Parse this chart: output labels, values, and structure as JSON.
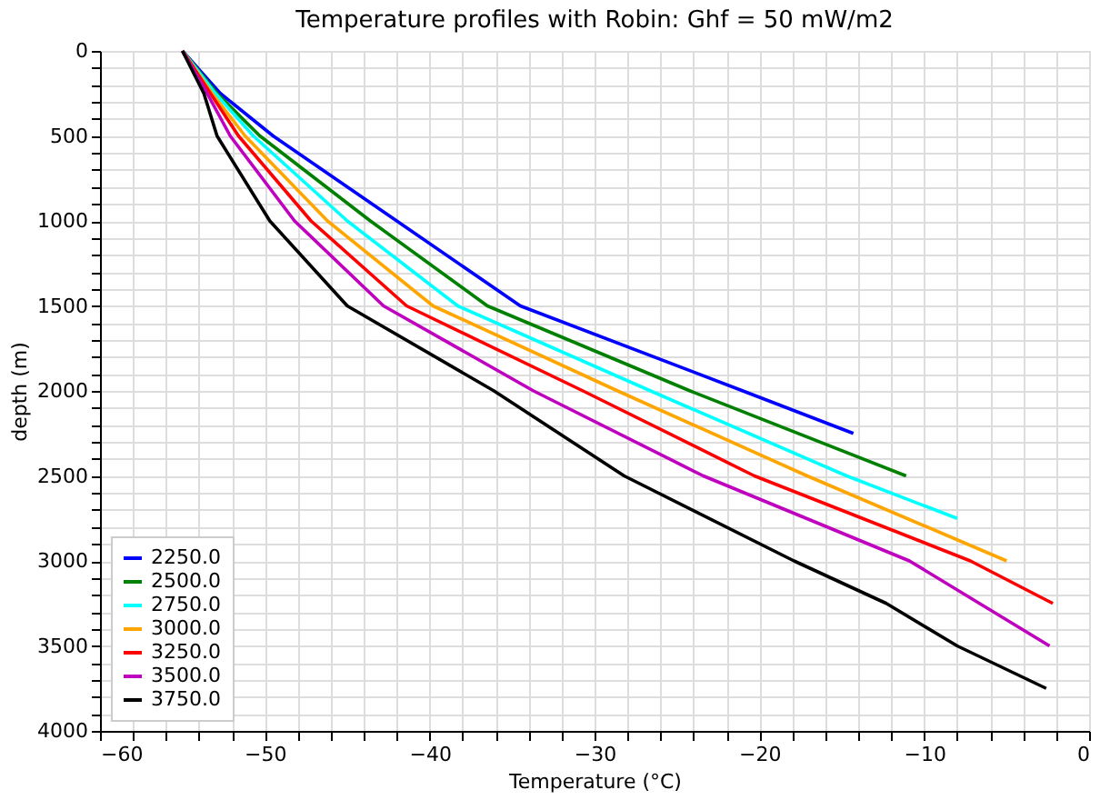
{
  "chart_data": {
    "type": "line",
    "title": "Temperature profiles with Robin: Ghf = 50 mW/m2",
    "xlabel": "Temperature (°C)",
    "ylabel": "depth (m)",
    "xlim": [
      -60,
      0
    ],
    "ylim": [
      4000,
      0
    ],
    "xticks": [
      -60,
      {
        "value": -58,
        "label": null
      },
      {
        "value": -56,
        "label": null
      },
      {
        "value": -54,
        "label": null
      },
      {
        "value": -52,
        "label": null
      },
      -50,
      {
        "value": -48,
        "label": null
      },
      {
        "value": -46,
        "label": null
      },
      {
        "value": -44,
        "label": null
      },
      {
        "value": -42,
        "label": null
      },
      -40,
      {
        "value": -38,
        "label": null
      },
      {
        "value": -36,
        "label": null
      },
      {
        "value": -34,
        "label": null
      },
      {
        "value": -32,
        "label": null
      },
      -30,
      {
        "value": -28,
        "label": null
      },
      {
        "value": -26,
        "label": null
      },
      {
        "value": -24,
        "label": null
      },
      {
        "value": -22,
        "label": null
      },
      -20,
      {
        "value": -18,
        "label": null
      },
      {
        "value": -16,
        "label": null
      },
      {
        "value": -14,
        "label": null
      },
      {
        "value": -12,
        "label": null
      },
      -10,
      {
        "value": -8,
        "label": null
      },
      {
        "value": -6,
        "label": null
      },
      {
        "value": -4,
        "label": null
      },
      {
        "value": -2,
        "label": null
      },
      0
    ],
    "yticks": [
      0,
      {
        "value": 100,
        "label": null
      },
      {
        "value": 200,
        "label": null
      },
      {
        "value": 300,
        "label": null
      },
      {
        "value": 400,
        "label": null
      },
      500,
      {
        "value": 600,
        "label": null
      },
      {
        "value": 700,
        "label": null
      },
      {
        "value": 800,
        "label": null
      },
      {
        "value": 900,
        "label": null
      },
      1000,
      {
        "value": 1100,
        "label": null
      },
      {
        "value": 1200,
        "label": null
      },
      {
        "value": 1300,
        "label": null
      },
      {
        "value": 1400,
        "label": null
      },
      1500,
      {
        "value": 1600,
        "label": null
      },
      {
        "value": 1700,
        "label": null
      },
      {
        "value": 1800,
        "label": null
      },
      {
        "value": 1900,
        "label": null
      },
      2000,
      {
        "value": 2100,
        "label": null
      },
      {
        "value": 2200,
        "label": null
      },
      {
        "value": 2300,
        "label": null
      },
      {
        "value": 2400,
        "label": null
      },
      2500,
      {
        "value": 2600,
        "label": null
      },
      {
        "value": 2700,
        "label": null
      },
      {
        "value": 2800,
        "label": null
      },
      {
        "value": 2900,
        "label": null
      },
      3000,
      {
        "value": 3100,
        "label": null
      },
      {
        "value": 3200,
        "label": null
      },
      {
        "value": 3300,
        "label": null
      },
      {
        "value": 3400,
        "label": null
      },
      3500,
      {
        "value": 3600,
        "label": null
      },
      {
        "value": 3700,
        "label": null
      },
      {
        "value": 3800,
        "label": null
      },
      {
        "value": 3900,
        "label": null
      },
      4000
    ],
    "grid": true,
    "legend": "bottom left",
    "series": [
      {
        "name": "2250.0",
        "color": "#0000ff",
        "x": [
          -55,
          -52.7,
          -49.5,
          -42.0,
          -34.5,
          -21.0,
          -14.3
        ],
        "values": [
          0,
          250,
          500,
          1000,
          1500,
          2000,
          2250
        ]
      },
      {
        "name": "2500.0",
        "color": "#008000",
        "x": [
          -55,
          -52.9,
          -50.3,
          -43.6,
          -36.5,
          -24.2,
          -11.1
        ],
        "values": [
          0,
          250,
          500,
          1000,
          1500,
          2000,
          2500
        ]
      },
      {
        "name": "2750.0",
        "color": "#00ffff",
        "x": [
          -55,
          -53.0,
          -50.7,
          -45.0,
          -38.3,
          -26.6,
          -14.7,
          -8.0
        ],
        "values": [
          0,
          250,
          500,
          1000,
          1500,
          2000,
          2500,
          2750
        ]
      },
      {
        "name": "3000.0",
        "color": "#ffa500",
        "x": [
          -55,
          -53.2,
          -51.2,
          -46.2,
          -39.8,
          -28.6,
          -17.1,
          -5.0
        ],
        "values": [
          0,
          250,
          500,
          1000,
          1500,
          2000,
          2500,
          3000
        ]
      },
      {
        "name": "3250.0",
        "color": "#ff0000",
        "x": [
          -55,
          -53.3,
          -51.6,
          -47.2,
          -41.4,
          -30.7,
          -20.3,
          -7.2,
          -2.2
        ],
        "values": [
          0,
          250,
          500,
          1000,
          1500,
          2000,
          2500,
          3000,
          3250
        ]
      },
      {
        "name": "3500.0",
        "color": "#bf00bf",
        "x": [
          -55,
          -53.5,
          -52.1,
          -48.2,
          -42.8,
          -33.7,
          -23.4,
          -10.9,
          -2.4
        ],
        "values": [
          0,
          250,
          500,
          1000,
          1500,
          2000,
          2500,
          3000,
          3500
        ]
      },
      {
        "name": "3750.0",
        "color": "#000000",
        "x": [
          -55,
          -53.7,
          -52.9,
          -49.7,
          -45.0,
          -36.1,
          -28.2,
          -17.9,
          -12.3,
          -8.0,
          -2.6
        ],
        "values": [
          0,
          250,
          500,
          1000,
          1500,
          2000,
          2500,
          3000,
          3250,
          3500,
          3750
        ]
      }
    ]
  }
}
